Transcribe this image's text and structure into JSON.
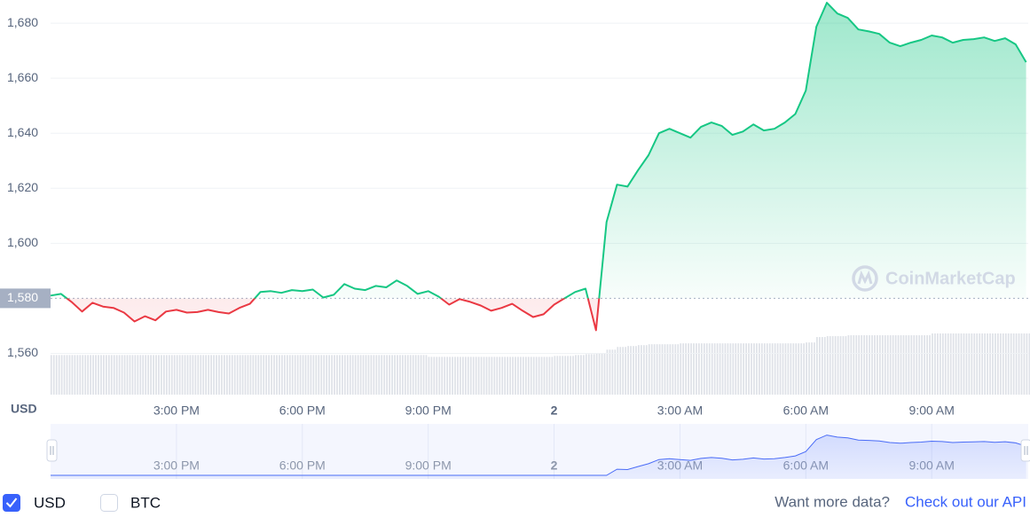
{
  "chart_data": {
    "type": "line",
    "y_axis_label": "USD",
    "watermark": "CoinMarketCap",
    "x": [
      0,
      0.25,
      0.5,
      0.75,
      1,
      1.25,
      1.5,
      1.75,
      2,
      2.25,
      2.5,
      2.75,
      3,
      3.25,
      3.5,
      3.75,
      4,
      4.25,
      4.5,
      4.75,
      5,
      5.25,
      5.5,
      5.75,
      6,
      6.25,
      6.5,
      6.75,
      7,
      7.25,
      7.5,
      7.75,
      8,
      8.25,
      8.5,
      8.75,
      9,
      9.25,
      9.5,
      9.75,
      10,
      10.25,
      10.5,
      10.75,
      11,
      11.25,
      11.5,
      11.75,
      12,
      12.25,
      12.5,
      12.75,
      13,
      13.25,
      13.5,
      13.75,
      14,
      14.25,
      14.5,
      14.75,
      15,
      15.25,
      15.5,
      15.75,
      16,
      16.25,
      16.5,
      16.75,
      17,
      17.25,
      17.5,
      17.75,
      18,
      18.25,
      18.5,
      18.75,
      19,
      19.25,
      19.5,
      19.75,
      20,
      20.25,
      20.5,
      20.75,
      21,
      21.25,
      21.5,
      21.75,
      22,
      22.25,
      22.5,
      22.75,
      23,
      23.25
    ],
    "series": [
      {
        "name": "USD",
        "color": "#16c784",
        "values": [
          1581,
          1581.6,
          1578.7,
          1575.2,
          1578.4,
          1577,
          1576.5,
          1574.8,
          1571.6,
          1573.5,
          1572,
          1575.2,
          1575.8,
          1574.8,
          1575,
          1575.8,
          1575,
          1574.5,
          1576.5,
          1578,
          1582.3,
          1582.6,
          1582,
          1583,
          1582.6,
          1583.2,
          1580.3,
          1581.3,
          1585.2,
          1583.5,
          1583,
          1584.5,
          1584,
          1586.5,
          1584.5,
          1581.6,
          1582.6,
          1580.6,
          1577.7,
          1579.7,
          1578.7,
          1577.4,
          1575.5,
          1576.5,
          1578,
          1575.5,
          1573.2,
          1574.2,
          1577.7,
          1580,
          1582.3,
          1583.5,
          1568.4,
          1607.7,
          1621.3,
          1620.6,
          1626.5,
          1632,
          1640,
          1641.6,
          1640,
          1638.4,
          1642.3,
          1643.9,
          1642.6,
          1639.4,
          1640.6,
          1643.2,
          1641,
          1641.6,
          1643.9,
          1647,
          1655.5,
          1678.7,
          1687.4,
          1683.5,
          1681.9,
          1677.7,
          1677,
          1676.1,
          1672.9,
          1671.6,
          1672.9,
          1673.9,
          1675.5,
          1674.8,
          1672.9,
          1673.9,
          1674.2,
          1674.8,
          1673.5,
          1674.5,
          1672.3,
          1665.8
        ]
      }
    ],
    "down_color": "#ea3943",
    "baseline": {
      "value": 1580,
      "label": "1,580"
    },
    "volume": [
      44,
      44,
      44,
      44,
      44,
      44,
      44,
      44,
      44,
      44,
      44,
      44,
      44,
      44,
      44,
      44,
      44,
      44,
      44,
      44,
      44,
      44,
      44,
      44,
      44,
      44,
      44,
      44,
      44,
      44,
      44,
      44,
      44,
      44,
      44,
      44,
      42,
      42,
      42,
      42,
      42,
      42,
      42,
      42,
      42,
      42,
      42,
      42,
      43,
      43,
      44,
      45,
      46,
      50,
      53,
      54,
      55,
      56,
      56,
      56,
      57,
      57,
      57,
      57,
      57,
      57,
      57,
      57,
      57,
      57,
      57,
      57,
      58,
      64,
      65,
      65,
      66,
      66,
      66,
      66,
      66,
      66,
      66,
      66,
      68,
      68,
      68,
      68,
      68,
      68,
      68,
      68,
      68,
      68
    ],
    "xlim": [
      0,
      23.3
    ],
    "xticks": [
      {
        "value": 3,
        "label": "3:00 PM"
      },
      {
        "value": 6,
        "label": "6:00 PM"
      },
      {
        "value": 9,
        "label": "9:00 PM"
      },
      {
        "value": 12,
        "label": "2"
      },
      {
        "value": 15,
        "label": "3:00 AM"
      },
      {
        "value": 18,
        "label": "6:00 AM"
      },
      {
        "value": 21,
        "label": "9:00 AM"
      }
    ],
    "ylim": [
      1545,
      1688.4
    ],
    "yticks": [
      {
        "value": 1560,
        "label": "1,560"
      },
      {
        "value": 1600,
        "label": "1,600"
      },
      {
        "value": 1620,
        "label": "1,620"
      },
      {
        "value": 1640,
        "label": "1,640"
      },
      {
        "value": 1660,
        "label": "1,660"
      },
      {
        "value": 1680,
        "label": "1,680"
      }
    ],
    "grid": true
  },
  "legend": [
    {
      "label": "USD",
      "checked": true
    },
    {
      "label": "BTC",
      "checked": false
    }
  ],
  "footer": {
    "prompt": "Want more data?",
    "link": "Check out our API"
  }
}
